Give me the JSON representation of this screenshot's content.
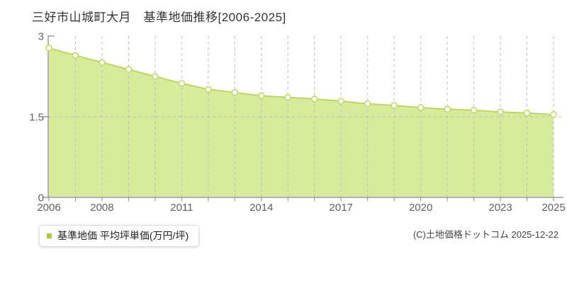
{
  "page": {
    "title": "三好市山城町大月　基準地価推移[2006-2025]"
  },
  "legend": {
    "label": "基準地価 平均坪単価(万円/坪)"
  },
  "footer": {
    "copyright": "(C)土地価格ドットコム 2025-12-22"
  },
  "chart_data": {
    "type": "area",
    "title": "三好市山城町大月 基準地価推移[2006-2025]",
    "xlabel": "",
    "ylabel": "平均坪単価(万円/坪)",
    "x": [
      2006,
      2007,
      2008,
      2009,
      2010,
      2011,
      2012,
      2013,
      2014,
      2015,
      2016,
      2017,
      2018,
      2019,
      2020,
      2021,
      2022,
      2023,
      2024,
      2025
    ],
    "series": [
      {
        "name": "基準地価 平均坪単価(万円/坪)",
        "values": [
          2.78,
          2.64,
          2.51,
          2.38,
          2.25,
          2.12,
          2.01,
          1.95,
          1.89,
          1.86,
          1.83,
          1.79,
          1.74,
          1.71,
          1.67,
          1.64,
          1.62,
          1.59,
          1.57,
          1.54
        ]
      }
    ],
    "ylim": [
      0,
      3
    ],
    "yticks": [
      {
        "value": 3,
        "label": "3"
      },
      {
        "value": 1.5,
        "label": "1.5"
      },
      {
        "value": 0,
        "label": "0"
      }
    ],
    "xticks": [
      2006,
      2008,
      2011,
      2014,
      2017,
      2020,
      2023,
      2025
    ],
    "y_gridlines": [
      1.5
    ],
    "grid": "dashed, vertical at every year and horizontal at 1.5",
    "legend_position": "bottom-left",
    "colors": {
      "line": "#bcd75f",
      "area_fill": "#d7ec9b",
      "marker_stroke": "#bfd765",
      "marker_fill": "#ffffff",
      "grid": "#bdbdbd",
      "axis": "#666666",
      "tick": "#888888",
      "tick_label": "#606060",
      "legend_marker": "#a5ce39",
      "title_text": "#333333"
    }
  }
}
